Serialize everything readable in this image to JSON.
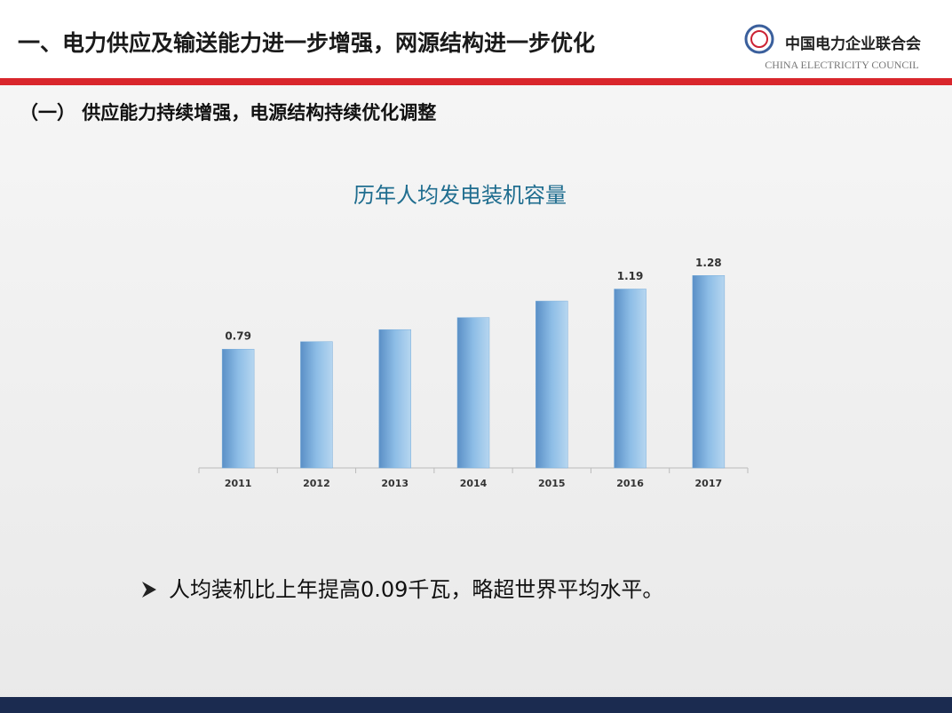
{
  "header": {
    "title": "一、电力供应及输送能力进一步增强，网源结构进一步优化",
    "logo_name": "中国电力企业联合会",
    "logo_english": "CHINA ELECTRICITY COUNCIL"
  },
  "section_title": "（一） 供应能力持续增强，电源结构持续优化调整",
  "chart_data": {
    "type": "bar",
    "title": "历年人均发电装机容量",
    "categories": [
      "2011",
      "2012",
      "2013",
      "2014",
      "2015",
      "2016",
      "2017"
    ],
    "values": [
      0.79,
      0.84,
      0.92,
      1.0,
      1.11,
      1.19,
      1.28
    ],
    "value_labels": [
      "0.79",
      null,
      null,
      null,
      null,
      "1.19",
      "1.28"
    ],
    "color": "#7aaedb",
    "ylim": [
      0,
      1.5
    ]
  },
  "bullet": "人均装机比上年提高0.09千瓦，略超世界平均水平。"
}
